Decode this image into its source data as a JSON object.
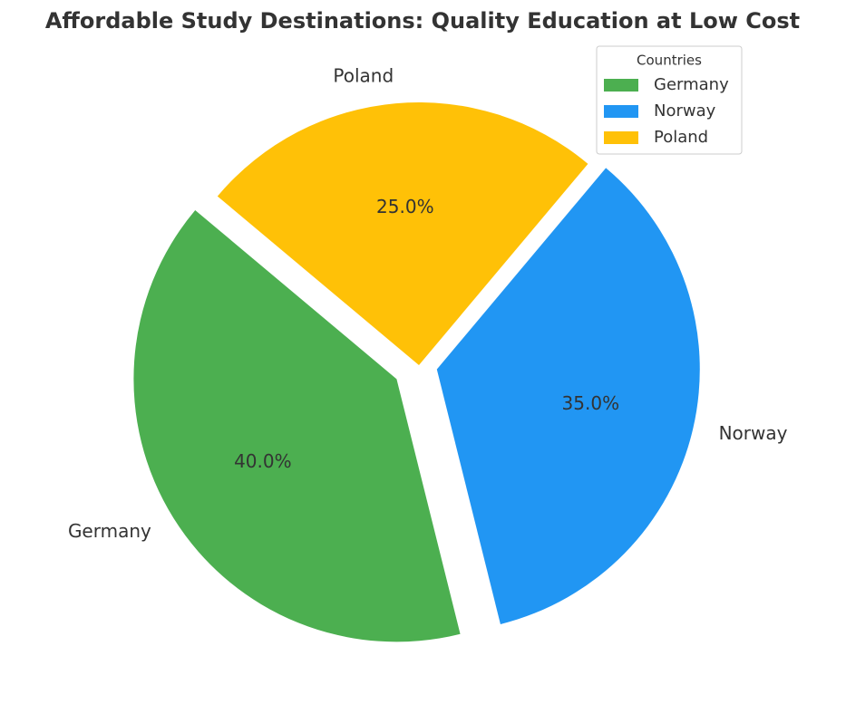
{
  "chart_data": {
    "type": "pie",
    "title": "Affordable Study Destinations: Quality Education at Low Cost",
    "categories": [
      "Germany",
      "Norway",
      "Poland"
    ],
    "values": [
      40,
      35,
      25
    ],
    "value_labels": [
      "40.0%",
      "35.0%",
      "25.0%"
    ],
    "colors": [
      "#4caf50",
      "#2196f3",
      "#ffc107"
    ],
    "explode": [
      0.1,
      0.07,
      0
    ],
    "startangle": 140,
    "legend_title": "Countries",
    "legend": "upper right"
  }
}
